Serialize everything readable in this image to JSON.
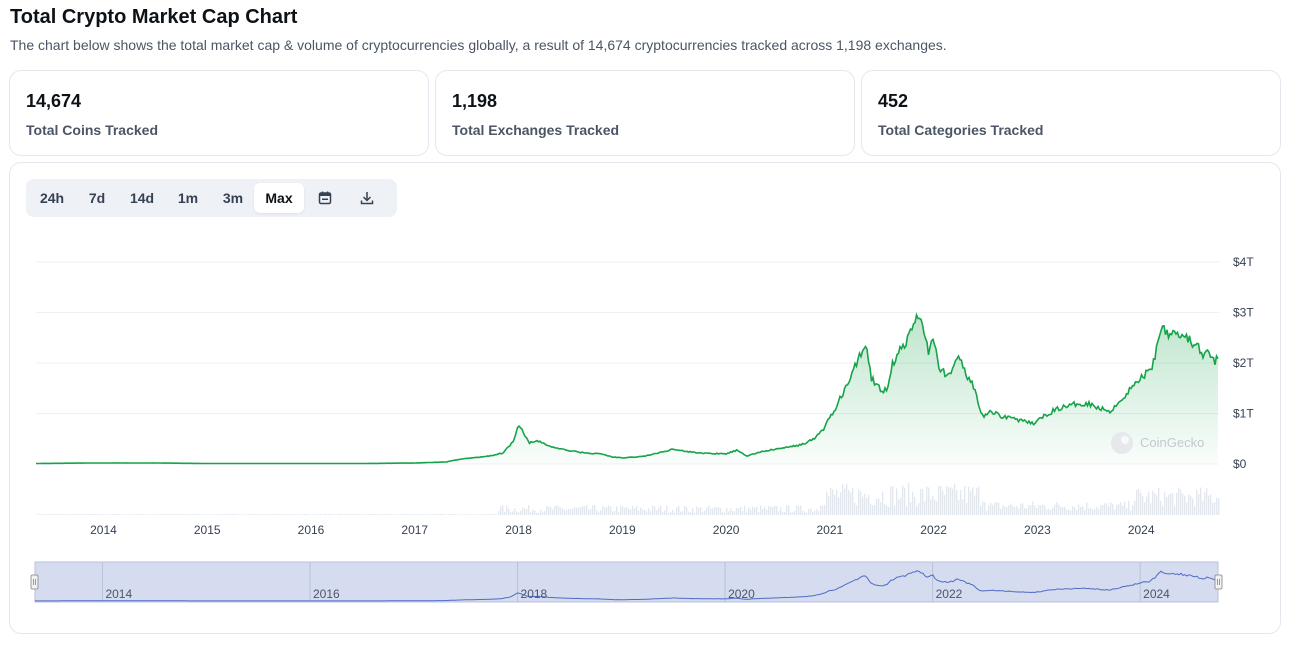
{
  "header": {
    "title": "Total Crypto Market Cap Chart",
    "description": "The chart below shows the total market cap & volume of cryptocurrencies globally, a result of 14,674 cryptocurrencies tracked across 1,198 exchanges."
  },
  "stats": [
    {
      "value": "14,674",
      "label": "Total Coins Tracked"
    },
    {
      "value": "1,198",
      "label": "Total Exchanges Tracked"
    },
    {
      "value": "452",
      "label": "Total Categories Tracked"
    }
  ],
  "range_buttons": [
    "24h",
    "7d",
    "14d",
    "1m",
    "3m",
    "Max"
  ],
  "active_range": "Max",
  "icons": {
    "calendar": "calendar-icon",
    "download": "download-icon"
  },
  "watermark": "CoinGecko",
  "colors": {
    "line": "#16a34a",
    "area_top": "#16a34a",
    "volume": "#e3e8ef",
    "navigator_fill": "#d5dcef",
    "navigator_line": "#4f6bc4",
    "grid": "#eef1f4"
  },
  "chart_data": {
    "type": "area",
    "title": "",
    "xlabel": "",
    "ylabel": "",
    "x_range": [
      2013.35,
      2024.75
    ],
    "ylim": [
      0,
      4
    ],
    "y_unit": "trillion USD",
    "y_ticks": [
      {
        "value": 0,
        "label": "$0"
      },
      {
        "value": 1,
        "label": "$1T"
      },
      {
        "value": 2,
        "label": "$2T"
      },
      {
        "value": 3,
        "label": "$3T"
      },
      {
        "value": 4,
        "label": "$4T"
      }
    ],
    "x_ticks": [
      "2014",
      "2015",
      "2016",
      "2017",
      "2018",
      "2019",
      "2020",
      "2021",
      "2022",
      "2023",
      "2024"
    ],
    "navigator_labels": [
      "2014",
      "2016",
      "2018",
      "2020",
      "2022",
      "2024"
    ],
    "grid": true,
    "series": [
      {
        "values_x": [
          2013.35,
          2013.9,
          2014.5,
          2015.0,
          2015.5,
          2016.0,
          2016.5,
          2017.0,
          2017.3,
          2017.45,
          2017.6,
          2017.75,
          2017.85,
          2017.95,
          2018.0,
          2018.05,
          2018.1,
          2018.2,
          2018.3,
          2018.4,
          2018.5,
          2018.6,
          2018.7,
          2018.8,
          2018.9,
          2019.0,
          2019.2,
          2019.35,
          2019.5,
          2019.6,
          2019.8,
          2020.0,
          2020.1,
          2020.2,
          2020.35,
          2020.5,
          2020.65,
          2020.75,
          2020.85,
          2020.95,
          2021.0,
          2021.05,
          2021.1,
          2021.2,
          2021.3,
          2021.35,
          2021.4,
          2021.5,
          2021.55,
          2021.6,
          2021.65,
          2021.75,
          2021.85,
          2021.9,
          2021.95,
          2022.0,
          2022.05,
          2022.15,
          2022.25,
          2022.3,
          2022.4,
          2022.45,
          2022.5,
          2022.55,
          2022.65,
          2022.75,
          2022.85,
          2022.95,
          2023.0,
          2023.1,
          2023.2,
          2023.3,
          2023.4,
          2023.5,
          2023.6,
          2023.7,
          2023.8,
          2023.9,
          2024.0,
          2024.1,
          2024.15,
          2024.2,
          2024.25,
          2024.3,
          2024.4,
          2024.5,
          2024.55,
          2024.6,
          2024.65,
          2024.7,
          2024.75
        ],
        "values_y": [
          0.01,
          0.02,
          0.02,
          0.01,
          0.01,
          0.01,
          0.01,
          0.02,
          0.04,
          0.1,
          0.13,
          0.17,
          0.22,
          0.45,
          0.8,
          0.62,
          0.42,
          0.45,
          0.35,
          0.3,
          0.26,
          0.23,
          0.21,
          0.2,
          0.14,
          0.12,
          0.15,
          0.22,
          0.3,
          0.25,
          0.21,
          0.2,
          0.27,
          0.16,
          0.25,
          0.3,
          0.35,
          0.4,
          0.5,
          0.72,
          0.95,
          1.05,
          1.3,
          1.7,
          2.2,
          2.4,
          1.7,
          1.45,
          1.5,
          1.95,
          2.2,
          2.45,
          2.97,
          2.7,
          2.25,
          2.45,
          1.9,
          1.75,
          2.1,
          1.85,
          1.45,
          1.0,
          0.95,
          1.05,
          0.95,
          0.92,
          0.85,
          0.8,
          0.85,
          1.0,
          1.1,
          1.15,
          1.2,
          1.2,
          1.1,
          1.05,
          1.25,
          1.5,
          1.7,
          1.9,
          2.3,
          2.8,
          2.6,
          2.65,
          2.55,
          2.4,
          2.3,
          2.1,
          2.25,
          2.0,
          2.15
        ]
      }
    ]
  }
}
